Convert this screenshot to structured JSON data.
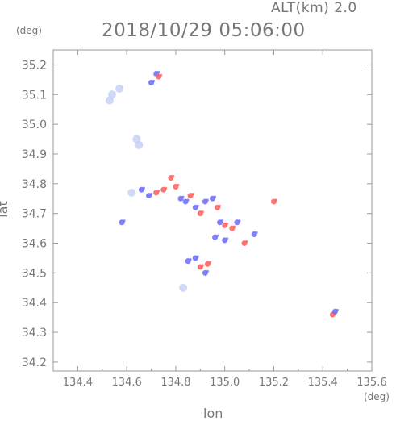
{
  "header": {
    "altitude_label": "ALT(km)  2.0",
    "timestamp": "2018/10/29 05:06:00",
    "y_unit": "(deg)",
    "x_unit": "(deg)"
  },
  "chart_data": {
    "type": "scatter",
    "title": "2018/10/29 05:06:00",
    "xlabel": "lon",
    "ylabel": "lat",
    "xlim": [
      134.3,
      135.6
    ],
    "ylim": [
      34.17,
      35.25
    ],
    "xticks": [
      "134.4",
      "134.6",
      "134.8",
      "135.0",
      "135.2",
      "135.4",
      "135.6"
    ],
    "yticks": [
      "34.2",
      "34.3",
      "34.4",
      "34.5",
      "34.6",
      "34.7",
      "34.8",
      "34.9",
      "35.0",
      "35.1",
      "35.2"
    ],
    "grid": false,
    "colors": {
      "approaching": "#6a6aff",
      "receding": "#ff5a5a",
      "weak": "#c8d2f5",
      "axis": "#999999"
    },
    "series": [
      {
        "values": [
          {
            "x": 134.54,
            "y": 35.1,
            "v": "weak"
          },
          {
            "x": 134.57,
            "y": 35.12,
            "v": "weak"
          },
          {
            "x": 134.53,
            "y": 35.08,
            "v": "weak"
          },
          {
            "x": 134.7,
            "y": 35.14,
            "v": "approaching"
          },
          {
            "x": 134.72,
            "y": 35.17,
            "v": "approaching"
          },
          {
            "x": 134.73,
            "y": 35.16,
            "v": "receding"
          },
          {
            "x": 134.64,
            "y": 34.95,
            "v": "weak"
          },
          {
            "x": 134.65,
            "y": 34.93,
            "v": "weak"
          },
          {
            "x": 134.62,
            "y": 34.77,
            "v": "weak"
          },
          {
            "x": 134.66,
            "y": 34.78,
            "v": "approaching"
          },
          {
            "x": 134.69,
            "y": 34.76,
            "v": "approaching"
          },
          {
            "x": 134.72,
            "y": 34.77,
            "v": "receding"
          },
          {
            "x": 134.75,
            "y": 34.78,
            "v": "receding"
          },
          {
            "x": 134.78,
            "y": 34.82,
            "v": "receding"
          },
          {
            "x": 134.8,
            "y": 34.79,
            "v": "receding"
          },
          {
            "x": 134.82,
            "y": 34.75,
            "v": "approaching"
          },
          {
            "x": 134.84,
            "y": 34.74,
            "v": "approaching"
          },
          {
            "x": 134.86,
            "y": 34.76,
            "v": "receding"
          },
          {
            "x": 134.88,
            "y": 34.72,
            "v": "approaching"
          },
          {
            "x": 134.9,
            "y": 34.7,
            "v": "receding"
          },
          {
            "x": 134.92,
            "y": 34.74,
            "v": "approaching"
          },
          {
            "x": 134.95,
            "y": 34.75,
            "v": "approaching"
          },
          {
            "x": 134.97,
            "y": 34.72,
            "v": "receding"
          },
          {
            "x": 134.98,
            "y": 34.67,
            "v": "approaching"
          },
          {
            "x": 135.0,
            "y": 34.66,
            "v": "receding"
          },
          {
            "x": 135.03,
            "y": 34.65,
            "v": "receding"
          },
          {
            "x": 135.05,
            "y": 34.67,
            "v": "approaching"
          },
          {
            "x": 135.08,
            "y": 34.6,
            "v": "receding"
          },
          {
            "x": 135.0,
            "y": 34.61,
            "v": "approaching"
          },
          {
            "x": 134.96,
            "y": 34.62,
            "v": "approaching"
          },
          {
            "x": 135.12,
            "y": 34.63,
            "v": "approaching"
          },
          {
            "x": 134.58,
            "y": 34.67,
            "v": "approaching"
          },
          {
            "x": 134.88,
            "y": 34.55,
            "v": "approaching"
          },
          {
            "x": 134.9,
            "y": 34.52,
            "v": "receding"
          },
          {
            "x": 134.92,
            "y": 34.5,
            "v": "approaching"
          },
          {
            "x": 134.93,
            "y": 34.53,
            "v": "receding"
          },
          {
            "x": 134.85,
            "y": 34.54,
            "v": "approaching"
          },
          {
            "x": 134.83,
            "y": 34.45,
            "v": "weak"
          },
          {
            "x": 135.2,
            "y": 34.74,
            "v": "receding"
          },
          {
            "x": 135.44,
            "y": 34.36,
            "v": "receding"
          },
          {
            "x": 135.45,
            "y": 34.37,
            "v": "approaching"
          }
        ]
      }
    ]
  }
}
